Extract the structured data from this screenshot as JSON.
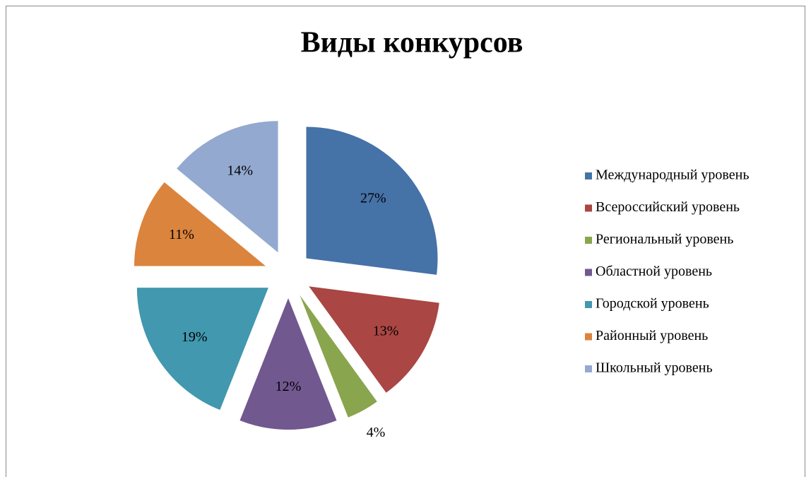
{
  "chart_data": {
    "type": "pie",
    "title": "Виды конкурсов",
    "categories": [
      "Международный уровень",
      "Всероссийский уровень",
      "Региональный уровень",
      "Областной уровень",
      "Городской уровень",
      "Районный уровень",
      "Школьный уровень"
    ],
    "values": [
      27,
      13,
      4,
      12,
      19,
      11,
      14
    ],
    "value_labels": [
      "27%",
      "13%",
      "4%",
      "12%",
      "19%",
      "11%",
      "14%"
    ],
    "colors": [
      "#4572a7",
      "#aa4643",
      "#89a54e",
      "#71588f",
      "#4198af",
      "#db843d",
      "#93a9cf"
    ],
    "legend": "right"
  }
}
